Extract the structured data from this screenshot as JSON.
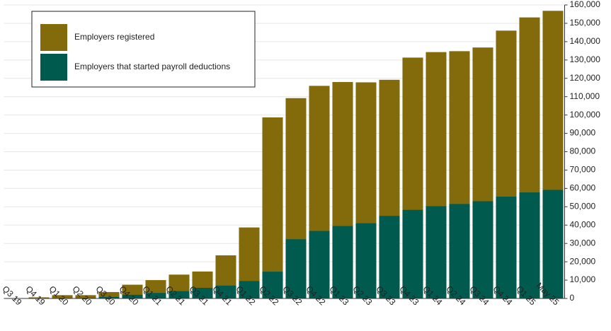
{
  "chart_data": {
    "type": "bar",
    "overlap": true,
    "categories": [
      "Q3 19",
      "Q4 19",
      "Q1 20",
      "Q2 20",
      "Q3 20",
      "Q4 20",
      "Q1 21",
      "Q2 21",
      "Q3 21",
      "Q4 21",
      "Q1 22",
      "Q2 22",
      "Q3 22",
      "Q4 22",
      "Q1 23",
      "Q2 23",
      "Q3 23",
      "Q4 23",
      "Q1 24",
      "Q2 24",
      "Q3 24",
      "Q4 24",
      "Q1 25",
      "May 25"
    ],
    "series": [
      {
        "name": "Employers registered",
        "color": "#836a0b",
        "values": [
          200,
          600,
          1800,
          1800,
          3500,
          7500,
          10000,
          13000,
          14700,
          23500,
          38700,
          98700,
          109200,
          115900,
          118000,
          117800,
          119200,
          131300,
          134300,
          134800,
          136800,
          146000,
          153200,
          156800
        ]
      },
      {
        "name": "Employers that started payroll deductions",
        "color": "#005b4e",
        "values": [
          0,
          100,
          200,
          300,
          800,
          2000,
          3000,
          4000,
          5800,
          7000,
          9500,
          14600,
          32300,
          36800,
          39500,
          41000,
          45000,
          48300,
          50300,
          51500,
          53000,
          55500,
          57800,
          59200
        ]
      }
    ],
    "ylim": [
      0,
      160000
    ],
    "yticks": [
      0,
      {
        "value": 10000,
        "label": "10,000"
      },
      {
        "value": 20000,
        "label": "20,000"
      },
      {
        "value": 30000,
        "label": "30,000"
      },
      {
        "value": 40000,
        "label": "40,000"
      },
      {
        "value": 50000,
        "label": "50,000"
      },
      {
        "value": 60000,
        "label": "60,000"
      },
      {
        "value": 70000,
        "label": "70,000"
      },
      {
        "value": 80000,
        "label": "80,000"
      },
      {
        "value": 90000,
        "label": "90,000"
      },
      {
        "value": 100000,
        "label": "100,000"
      },
      {
        "value": 110000,
        "label": "110,000"
      },
      {
        "value": 120000,
        "label": "120,000"
      },
      {
        "value": 130000,
        "label": "130,000"
      },
      {
        "value": 140000,
        "label": "140,000"
      },
      {
        "value": 150000,
        "label": "150,000"
      },
      {
        "value": 160000,
        "label": "160,000"
      }
    ],
    "grid": true,
    "y_axis_side": "right",
    "legend": "upper left"
  }
}
